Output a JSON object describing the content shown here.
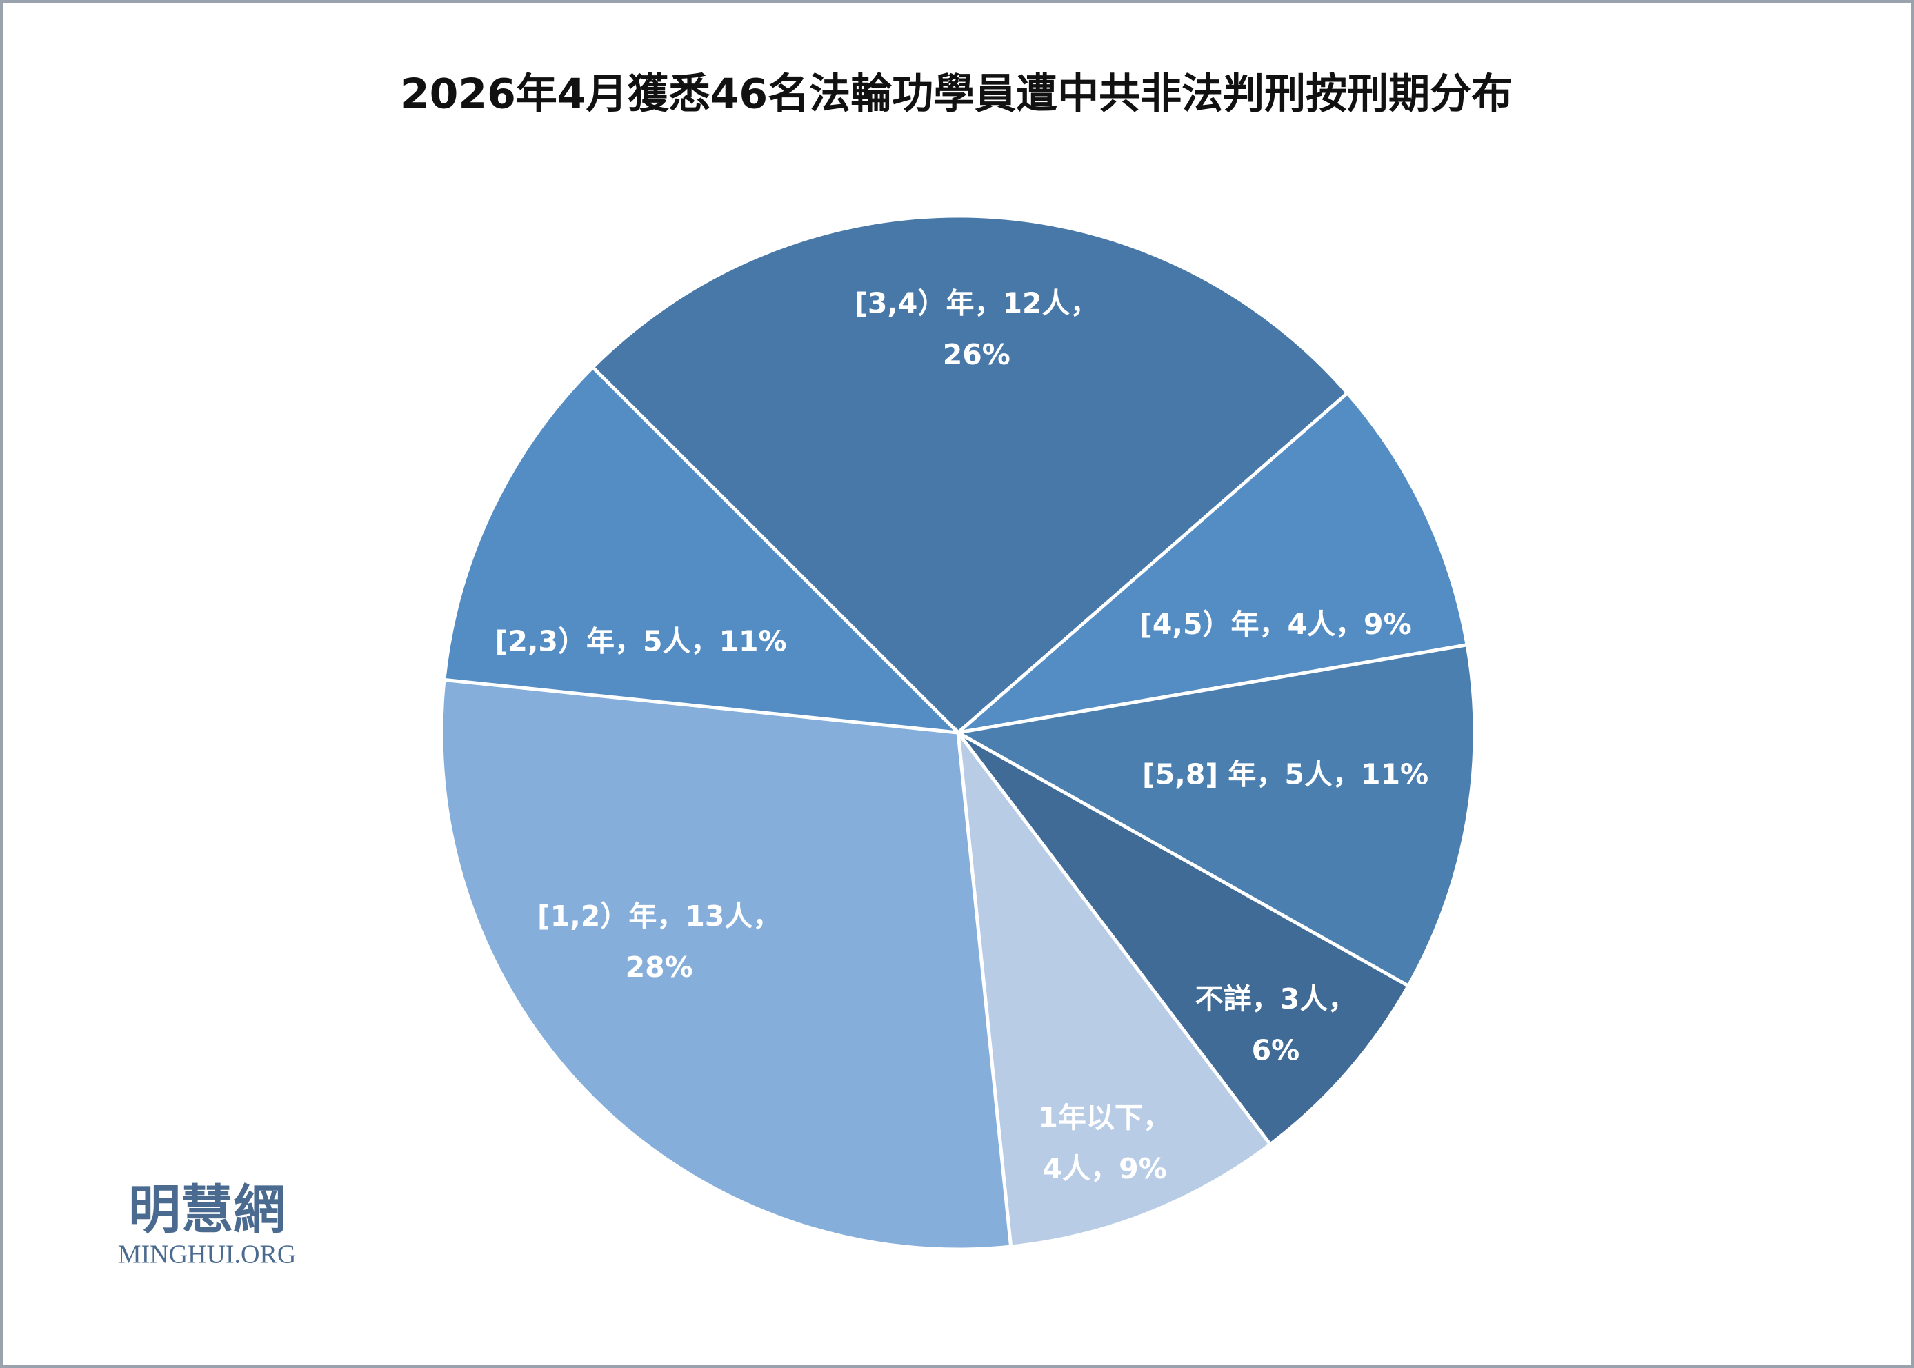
{
  "chart_data": {
    "type": "pie",
    "title": "2026年4月獲悉46名法輪功學員遭中共非法判刑按刑期分布",
    "categories": [
      "[3,4）年",
      "[4,5）年",
      "[5,8] 年",
      "不詳",
      "1年以下",
      "[1,2）年",
      "[2,3）年"
    ],
    "values": [
      12,
      4,
      5,
      3,
      4,
      13,
      5
    ],
    "value_labels": [
      [
        "[3,4）年，12人，",
        "26%"
      ],
      [
        "[4,5）年，4人，9%"
      ],
      [
        "[5,8] 年，5人，11%"
      ],
      [
        "不詳，3人，",
        "6%"
      ],
      [
        "1年以下，",
        "4人，9%"
      ],
      [
        "[1,2）年，13人，",
        "28%"
      ],
      [
        "[2,3）年，5人，11%"
      ]
    ],
    "colors": [
      "#4878a8",
      "#548dc4",
      "#4a7fb0",
      "#406b96",
      "#b8cce6",
      "#86aedb",
      "#548dc4"
    ],
    "watermark": [
      "明慧網",
      "MINGHUI.ORG"
    ]
  }
}
